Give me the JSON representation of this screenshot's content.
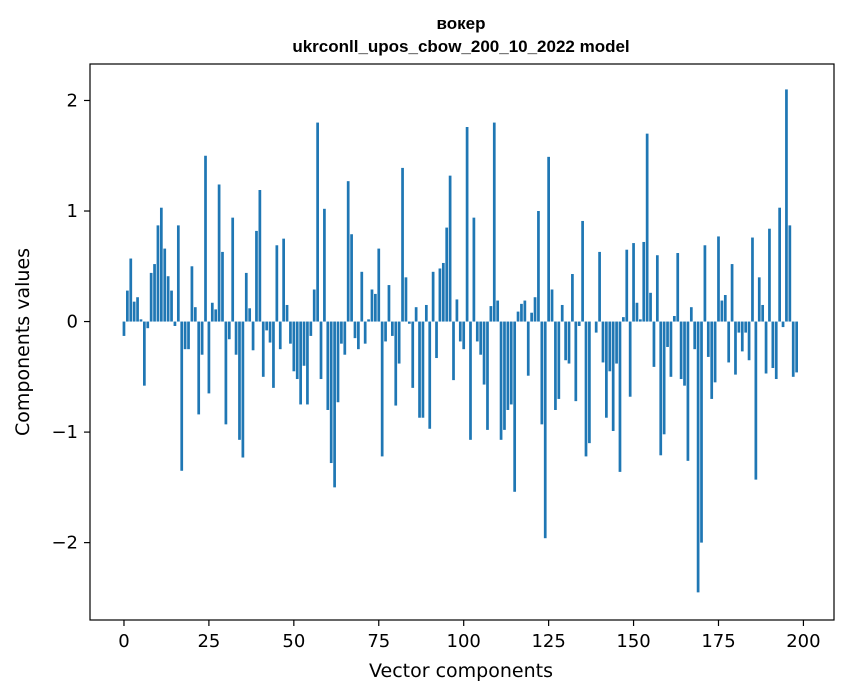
{
  "chart_data": {
    "type": "bar",
    "title_line1": "вокер",
    "title_line2": "ukrconll_upos_cbow_200_10_2022 model",
    "xlabel": "Vector components",
    "ylabel": "Components values",
    "xlim": [
      -10,
      209
    ],
    "ylim": [
      -2.7,
      2.33
    ],
    "xticks": [
      0,
      25,
      50,
      75,
      100,
      125,
      150,
      175,
      200
    ],
    "yticks": [
      -2,
      -1,
      0,
      1,
      2
    ],
    "ytick_labels": [
      "−2",
      "−1",
      "0",
      "1",
      "2"
    ],
    "grid": false,
    "bar_color": "#1f77b4",
    "x": [
      0,
      1,
      2,
      3,
      4,
      5,
      6,
      7,
      8,
      9,
      10,
      11,
      12,
      13,
      14,
      15,
      16,
      17,
      18,
      19,
      20,
      21,
      22,
      23,
      24,
      25,
      26,
      27,
      28,
      29,
      30,
      31,
      32,
      33,
      34,
      35,
      36,
      37,
      38,
      39,
      40,
      41,
      42,
      43,
      44,
      45,
      46,
      47,
      48,
      49,
      50,
      51,
      52,
      53,
      54,
      55,
      56,
      57,
      58,
      59,
      60,
      61,
      62,
      63,
      64,
      65,
      66,
      67,
      68,
      69,
      70,
      71,
      72,
      73,
      74,
      75,
      76,
      77,
      78,
      79,
      80,
      81,
      82,
      83,
      84,
      85,
      86,
      87,
      88,
      89,
      90,
      91,
      92,
      93,
      94,
      95,
      96,
      97,
      98,
      99,
      100,
      101,
      102,
      103,
      104,
      105,
      106,
      107,
      108,
      109,
      110,
      111,
      112,
      113,
      114,
      115,
      116,
      117,
      118,
      119,
      120,
      121,
      122,
      123,
      124,
      125,
      126,
      127,
      128,
      129,
      130,
      131,
      132,
      133,
      134,
      135,
      136,
      137,
      138,
      139,
      140,
      141,
      142,
      143,
      144,
      145,
      146,
      147,
      148,
      149,
      150,
      151,
      152,
      153,
      154,
      155,
      156,
      157,
      158,
      159,
      160,
      161,
      162,
      163,
      164,
      165,
      166,
      167,
      168,
      169,
      170,
      171,
      172,
      173,
      174,
      175,
      176,
      177,
      178,
      179,
      180,
      181,
      182,
      183,
      184,
      185,
      186,
      187,
      188,
      189,
      190,
      191,
      192,
      193,
      194,
      195,
      196,
      197,
      198,
      199
    ],
    "values": [
      -0.13,
      0.28,
      0.57,
      0.18,
      0.22,
      0.02,
      -0.58,
      -0.06,
      0.44,
      0.52,
      0.87,
      1.03,
      0.66,
      0.41,
      0.28,
      -0.04,
      0.87,
      -1.35,
      -0.25,
      -0.25,
      0.5,
      0.13,
      -0.84,
      -0.3,
      1.5,
      -0.65,
      0.17,
      0.11,
      1.24,
      0.63,
      -0.93,
      -0.16,
      0.94,
      -0.3,
      -1.07,
      -1.23,
      0.44,
      0.12,
      -0.26,
      0.82,
      1.19,
      -0.5,
      -0.08,
      -0.19,
      -0.6,
      0.69,
      -0.25,
      0.75,
      0.15,
      -0.2,
      -0.45,
      -0.52,
      -0.75,
      -0.4,
      -0.75,
      -0.13,
      0.29,
      1.8,
      -0.52,
      1.02,
      -0.8,
      -1.28,
      -1.5,
      -0.73,
      -0.2,
      -0.3,
      1.27,
      0.79,
      -0.15,
      -0.25,
      0.45,
      -0.2,
      0.02,
      0.29,
      0.25,
      0.66,
      -1.22,
      -0.18,
      0.33,
      -0.13,
      -0.76,
      -0.38,
      1.39,
      0.4,
      -0.02,
      -0.6,
      0.13,
      -0.87,
      -0.87,
      0.15,
      -0.97,
      0.45,
      -0.33,
      0.48,
      0.53,
      0.85,
      1.32,
      -0.53,
      0.2,
      -0.18,
      -0.25,
      1.76,
      -1.07,
      0.94,
      -0.18,
      -0.3,
      -0.57,
      -0.98,
      0.14,
      1.8,
      0.19,
      -1.07,
      -0.98,
      -0.8,
      -0.75,
      -1.54,
      0.09,
      0.16,
      0.19,
      -0.49,
      0.08,
      0.22,
      1.0,
      -0.93,
      -1.96,
      1.49,
      0.29,
      -0.8,
      -0.7,
      0.15,
      -0.35,
      -0.38,
      0.43,
      -0.72,
      -0.04,
      0.91,
      -1.22,
      -1.1,
      0.0,
      -0.1,
      0.63,
      -0.37,
      -0.87,
      -0.45,
      -0.99,
      -0.38,
      -1.36,
      0.04,
      0.65,
      -0.68,
      0.71,
      0.17,
      0.02,
      0.72,
      1.7,
      0.26,
      -0.41,
      0.6,
      -1.21,
      -1.02,
      -0.23,
      -0.5,
      0.05,
      0.62,
      -0.52,
      -0.58,
      -1.26,
      0.13,
      -0.25,
      -2.45,
      -2.0,
      0.69,
      -0.32,
      -0.7,
      -0.55,
      0.77,
      0.19,
      0.24,
      -0.37,
      0.52,
      -0.48,
      -0.1,
      -0.27,
      -0.1,
      -0.35,
      0.76,
      -1.43,
      0.4,
      0.15,
      -0.47,
      0.84,
      -0.42,
      -0.52,
      1.03,
      -0.05,
      2.1,
      0.87,
      -0.5,
      -0.46,
      0.0
    ]
  }
}
